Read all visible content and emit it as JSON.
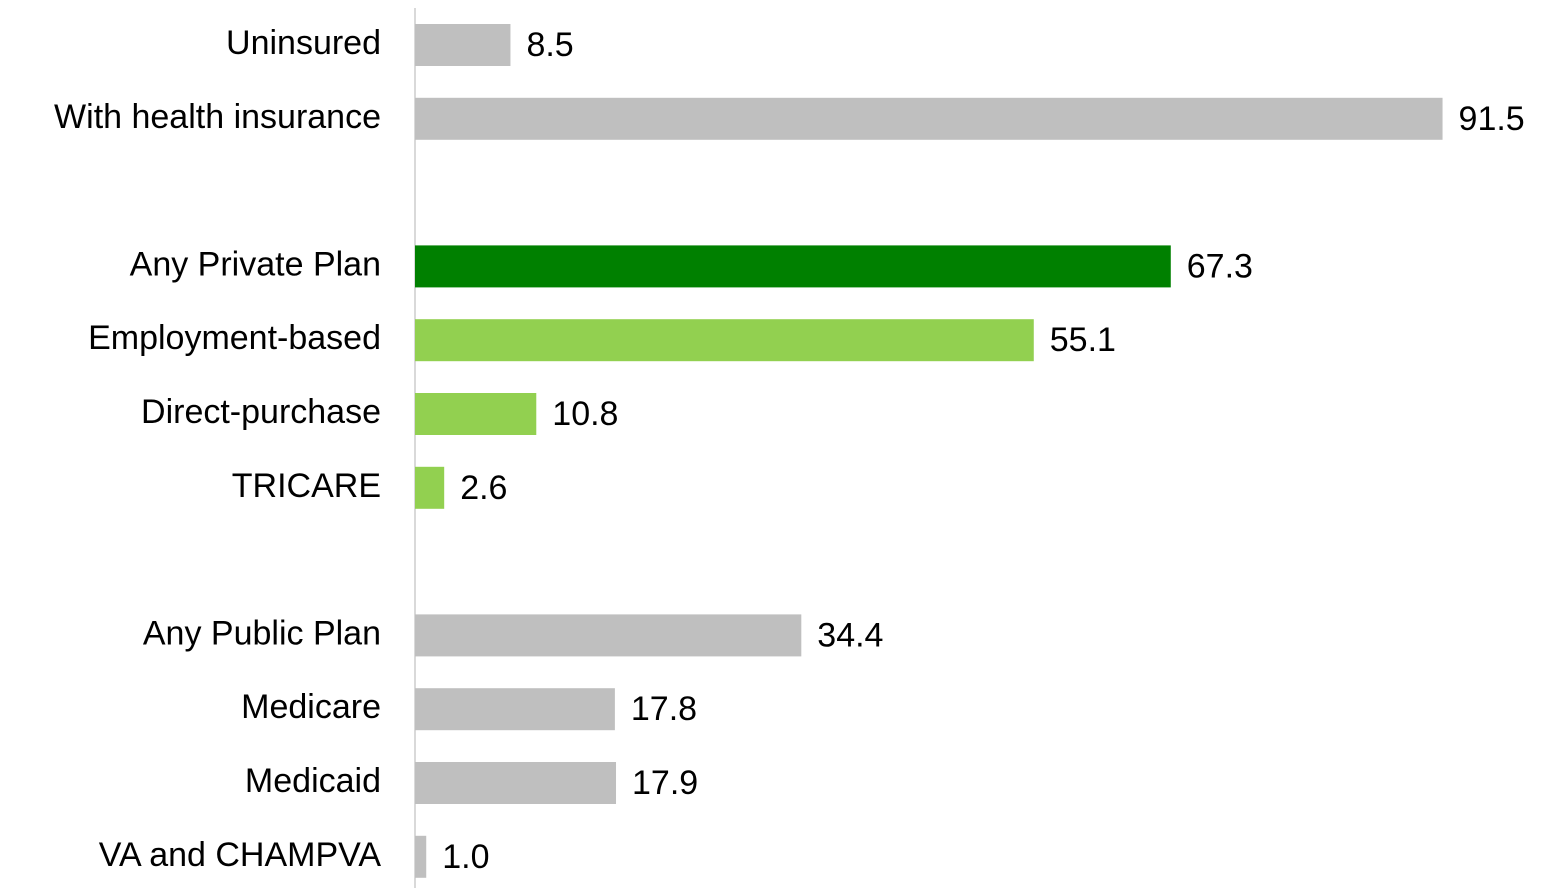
{
  "chart_data": {
    "type": "bar",
    "orientation": "horizontal",
    "categories": [
      "Uninsured",
      "With health insurance",
      null,
      "Any Private Plan",
      "Employment-based",
      "Direct-purchase",
      "TRICARE",
      null,
      "Any Public Plan",
      "Medicare",
      "Medicaid",
      "VA and CHAMPVA"
    ],
    "values": [
      8.5,
      91.5,
      null,
      67.3,
      55.1,
      10.8,
      2.6,
      null,
      34.4,
      17.8,
      17.9,
      1.0
    ],
    "value_labels": [
      "8.5",
      "91.5",
      null,
      "67.3",
      "55.1",
      "10.8",
      "2.6",
      null,
      "34.4",
      "17.8",
      "17.9",
      "1.0"
    ],
    "colors": [
      "#bfbfbf",
      "#bfbfbf",
      null,
      "#008000",
      "#92d050",
      "#92d050",
      "#92d050",
      null,
      "#bfbfbf",
      "#bfbfbf",
      "#bfbfbf",
      "#bfbfbf"
    ],
    "xlim": [
      0,
      100
    ]
  }
}
